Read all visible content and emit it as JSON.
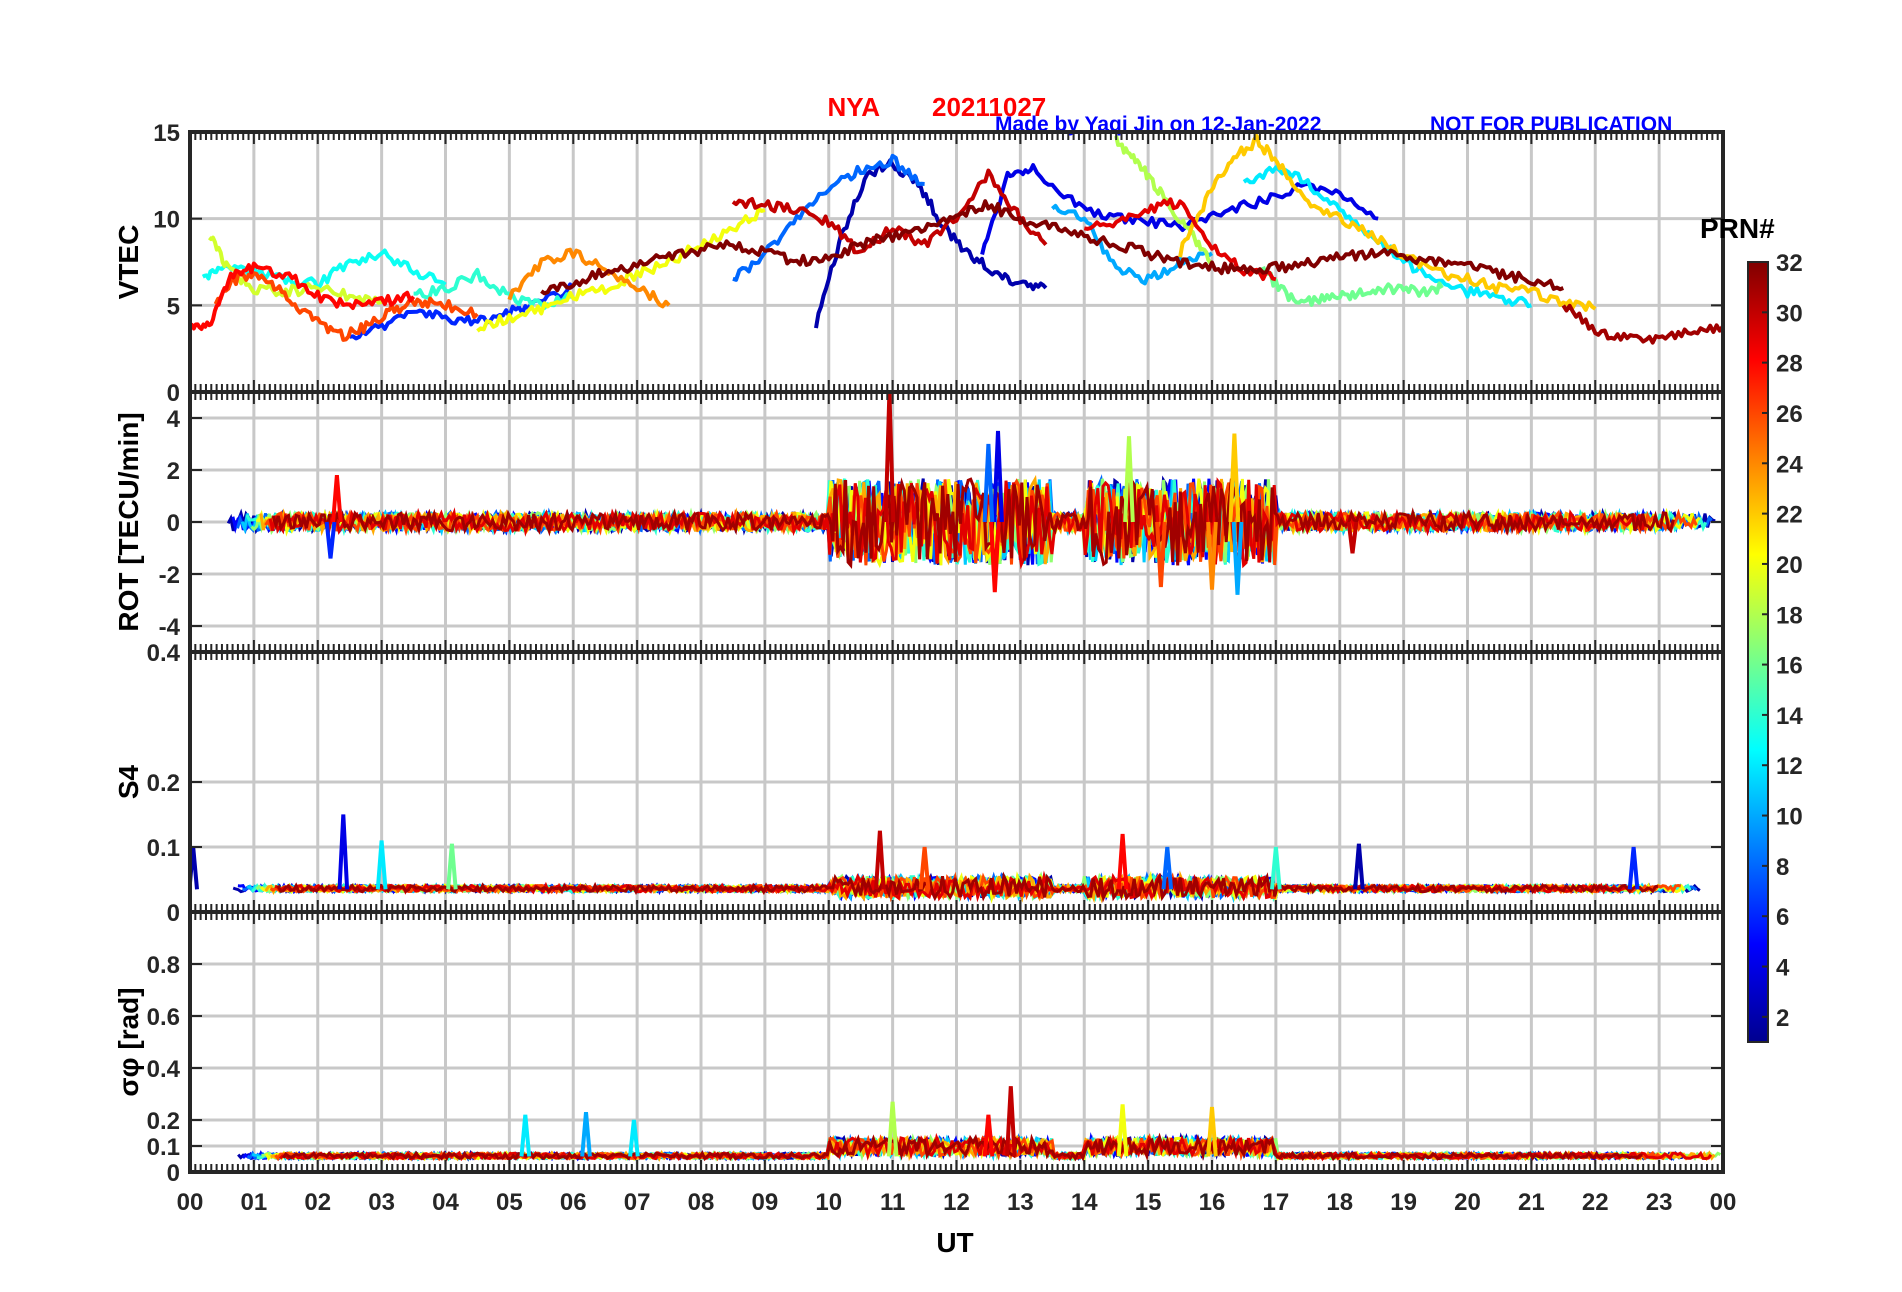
{
  "figure": {
    "station": "NYA",
    "date": "20211027",
    "credit": "Made by Yaqi Jin on 12-Jan-2022",
    "notice": "NOT FOR PUBLICATION",
    "xlabel": "UT",
    "x_ticks": [
      "00",
      "01",
      "02",
      "03",
      "04",
      "05",
      "06",
      "07",
      "08",
      "09",
      "10",
      "11",
      "12",
      "13",
      "14",
      "15",
      "16",
      "17",
      "18",
      "19",
      "20",
      "21",
      "22",
      "23",
      "00"
    ]
  },
  "colorbar": {
    "title": "PRN#",
    "range": [
      1,
      32
    ],
    "ticks": [
      2,
      4,
      6,
      8,
      10,
      12,
      14,
      16,
      18,
      20,
      22,
      24,
      26,
      28,
      30,
      32
    ],
    "colormap": "jet",
    "stops": [
      "#00008f",
      "#0000ff",
      "#0080ff",
      "#00ffff",
      "#80ff80",
      "#ffff00",
      "#ff8000",
      "#ff0000",
      "#800000"
    ]
  },
  "chart_data": [
    {
      "type": "line",
      "panel": "vtec",
      "ylabel": "VTEC",
      "xlim": [
        0,
        24
      ],
      "ylim": [
        0,
        15
      ],
      "yticks": [
        0,
        5,
        10,
        15
      ],
      "series": [
        {
          "name": "PRN 2",
          "prn": 2,
          "x": [
            9.8,
            10.2,
            10.6,
            11.0,
            11.4,
            11.8,
            12.2,
            12.6,
            13.0,
            13.4
          ],
          "y": [
            3.8,
            9.0,
            12.5,
            13.2,
            12.0,
            9.5,
            8.0,
            6.8,
            6.2,
            6.0
          ]
        },
        {
          "name": "PRN 4",
          "prn": 4,
          "x": [
            12.4,
            12.8,
            13.2,
            13.8,
            14.4,
            15.0,
            15.6,
            16.2,
            16.8,
            17.4,
            18.0,
            18.6
          ],
          "y": [
            8.0,
            12.5,
            13.0,
            11.0,
            10.0,
            9.8,
            9.5,
            10.5,
            11.0,
            12.0,
            11.5,
            10.0
          ]
        },
        {
          "name": "PRN 6",
          "prn": 6,
          "x": [
            2.5,
            3.0,
            3.5,
            4.0,
            4.5,
            5.0,
            5.5,
            6.0
          ],
          "y": [
            3.2,
            3.8,
            4.5,
            4.3,
            4.0,
            4.6,
            5.2,
            6.0
          ]
        },
        {
          "name": "PRN 8",
          "prn": 8,
          "x": [
            8.5,
            9.0,
            9.5,
            10.0,
            10.5,
            11.0,
            11.5
          ],
          "y": [
            6.5,
            8.0,
            10.0,
            11.8,
            12.8,
            13.4,
            12.0
          ]
        },
        {
          "name": "PRN 10",
          "prn": 10,
          "x": [
            13.5,
            14.0,
            14.5,
            15.0,
            15.5,
            16.0
          ],
          "y": [
            10.5,
            10.0,
            7.0,
            6.5,
            7.5,
            8.0
          ]
        },
        {
          "name": "PRN 12",
          "prn": 12,
          "x": [
            16.5,
            17.0,
            17.5,
            18.0,
            18.5,
            19.0,
            19.5,
            20.0,
            20.5,
            21.0
          ],
          "y": [
            12.0,
            13.0,
            12.0,
            10.5,
            9.0,
            7.5,
            6.5,
            5.8,
            5.5,
            5.0
          ]
        },
        {
          "name": "PRN 13",
          "prn": 13,
          "x": [
            0.2,
            0.5,
            1.0,
            1.5,
            2.0,
            2.5,
            3.0,
            3.5,
            4.0
          ],
          "y": [
            6.5,
            7.2,
            7.0,
            6.5,
            6.2,
            7.5,
            8.0,
            7.0,
            6.2
          ]
        },
        {
          "name": "PRN 14",
          "prn": 14,
          "x": [
            3.5,
            4.0,
            4.5,
            5.0,
            5.5,
            6.0
          ],
          "y": [
            5.5,
            6.0,
            6.8,
            5.5,
            5.0,
            5.5
          ]
        },
        {
          "name": "PRN 16",
          "prn": 16,
          "x": [
            16.8,
            17.2,
            17.6,
            18.0,
            18.4,
            18.8,
            19.2,
            19.6
          ],
          "y": [
            7.0,
            5.5,
            5.2,
            5.5,
            5.8,
            6.0,
            5.8,
            6.0
          ]
        },
        {
          "name": "PRN 18",
          "prn": 18,
          "x": [
            14.5,
            14.8,
            15.1,
            15.4,
            15.7,
            16.0
          ],
          "y": [
            14.5,
            13.5,
            12.0,
            10.5,
            9.0,
            7.5
          ]
        },
        {
          "name": "PRN 19",
          "prn": 19,
          "x": [
            0.3,
            0.6,
            1.0,
            1.5,
            2.0,
            2.5,
            3.0
          ],
          "y": [
            9.2,
            7.0,
            6.0,
            5.8,
            6.0,
            5.5,
            5.2
          ]
        },
        {
          "name": "PRN 20",
          "prn": 20,
          "x": [
            4.5,
            5.0,
            5.5,
            6.0,
            6.5,
            7.0,
            7.5,
            8.0,
            8.5,
            9.0
          ],
          "y": [
            3.8,
            4.2,
            4.8,
            5.5,
            6.0,
            6.8,
            7.5,
            8.5,
            9.5,
            10.5
          ]
        },
        {
          "name": "PRN 22",
          "prn": 22,
          "x": [
            15.5,
            15.9,
            16.3,
            16.7,
            17.1,
            17.5,
            18.0,
            18.5,
            19.0,
            19.5,
            20.0,
            20.5,
            21.0,
            21.5,
            22.0
          ],
          "y": [
            8.0,
            11.0,
            13.5,
            14.5,
            13.0,
            11.0,
            10.0,
            9.0,
            8.0,
            7.0,
            6.5,
            6.0,
            5.8,
            5.2,
            4.8
          ]
        },
        {
          "name": "PRN 24",
          "prn": 24,
          "x": [
            5.0,
            5.5,
            6.0,
            6.5,
            7.0,
            7.5
          ],
          "y": [
            5.5,
            7.5,
            8.0,
            7.0,
            6.0,
            5.0
          ]
        },
        {
          "name": "PRN 26",
          "prn": 26,
          "x": [
            0.4,
            0.8,
            1.2,
            1.6,
            2.0,
            2.4,
            2.8,
            3.2,
            3.6,
            4.0,
            4.5
          ],
          "y": [
            5.2,
            6.8,
            6.5,
            5.2,
            4.0,
            3.2,
            3.8,
            4.8,
            5.2,
            5.0,
            4.5
          ]
        },
        {
          "name": "PRN 28",
          "prn": 28,
          "x": [
            0.0,
            0.3,
            0.6,
            1.0,
            1.5,
            2.0,
            2.5,
            3.0,
            3.5
          ],
          "y": [
            4.0,
            3.8,
            6.5,
            7.2,
            6.8,
            5.5,
            5.0,
            5.2,
            5.5
          ]
        },
        {
          "name": "PRN 29",
          "prn": 29,
          "x": [
            14.0,
            14.5,
            15.0,
            15.5,
            16.0,
            16.5,
            17.0
          ],
          "y": [
            9.5,
            9.8,
            10.5,
            11.0,
            8.5,
            7.0,
            6.5
          ]
        },
        {
          "name": "PRN 30",
          "prn": 30,
          "x": [
            8.5,
            9.0,
            9.5,
            10.0,
            10.5,
            11.0,
            11.5,
            12.0,
            12.5,
            13.0,
            13.4
          ],
          "y": [
            11.0,
            10.8,
            10.5,
            9.8,
            8.0,
            9.5,
            8.5,
            10.0,
            12.5,
            10.0,
            8.5
          ]
        },
        {
          "name": "PRN 31",
          "prn": 31,
          "x": [
            21.5,
            22.0,
            22.5,
            23.0,
            23.5,
            24.0
          ],
          "y": [
            5.0,
            3.5,
            3.2,
            3.0,
            3.5,
            3.8
          ]
        },
        {
          "name": "PRN 32",
          "prn": 32,
          "x": [
            5.5,
            6.0,
            6.5,
            7.0,
            7.5,
            8.0,
            8.5,
            9.0,
            9.5,
            10.0,
            10.5,
            11.0,
            11.5,
            12.0,
            12.5,
            13.0,
            13.5,
            14.0,
            14.5,
            15.0,
            15.5,
            16.0,
            16.5,
            17.0,
            17.5,
            18.0,
            18.5,
            19.0,
            19.5,
            20.0,
            20.5,
            21.0,
            21.5
          ],
          "y": [
            5.8,
            6.3,
            6.9,
            7.3,
            7.8,
            8.2,
            8.6,
            8.0,
            7.5,
            7.8,
            8.5,
            9.0,
            9.5,
            10.2,
            10.8,
            10.0,
            9.5,
            9.0,
            8.5,
            8.0,
            7.5,
            7.2,
            7.0,
            7.2,
            7.4,
            7.8,
            8.0,
            7.8,
            7.5,
            7.2,
            6.8,
            6.5,
            6.0
          ]
        }
      ]
    },
    {
      "type": "line",
      "panel": "rot",
      "ylabel": "ROT [TECU/min]",
      "xlim": [
        0,
        24
      ],
      "ylim": [
        -5,
        5
      ],
      "yticks": [
        -4,
        -2,
        0,
        2,
        4
      ],
      "baseline": 0,
      "spikes": [
        {
          "prn": 30,
          "x": 10.95,
          "y": 5.0
        },
        {
          "prn": 4,
          "x": 12.65,
          "y": 3.5
        },
        {
          "prn": 8,
          "x": 12.5,
          "y": 3.0
        },
        {
          "prn": 22,
          "x": 16.35,
          "y": 3.4
        },
        {
          "prn": 18,
          "x": 14.7,
          "y": 3.3
        },
        {
          "prn": 28,
          "x": 12.6,
          "y": -2.7
        },
        {
          "prn": 10,
          "x": 16.4,
          "y": -2.8
        },
        {
          "prn": 24,
          "x": 16.0,
          "y": -2.6
        },
        {
          "prn": 26,
          "x": 15.2,
          "y": -2.5
        },
        {
          "prn": 6,
          "x": 2.2,
          "y": -1.4
        },
        {
          "prn": 28,
          "x": 2.3,
          "y": 1.8
        },
        {
          "prn": 30,
          "x": 18.2,
          "y": -1.2
        }
      ]
    },
    {
      "type": "line",
      "panel": "s4",
      "ylabel": "S4",
      "xlim": [
        0,
        24
      ],
      "ylim": [
        0,
        0.4
      ],
      "yticks": [
        0,
        0.1,
        0.2,
        0.4
      ],
      "baseline": 0.035,
      "spikes": [
        {
          "prn": 4,
          "x": 2.4,
          "y": 0.15
        },
        {
          "prn": 12,
          "x": 3.0,
          "y": 0.11
        },
        {
          "prn": 16,
          "x": 4.1,
          "y": 0.105
        },
        {
          "prn": 30,
          "x": 10.8,
          "y": 0.125
        },
        {
          "prn": 28,
          "x": 14.6,
          "y": 0.12
        },
        {
          "prn": 26,
          "x": 11.5,
          "y": 0.1
        },
        {
          "prn": 2,
          "x": 18.3,
          "y": 0.105
        },
        {
          "prn": 6,
          "x": 22.6,
          "y": 0.1
        },
        {
          "prn": 2,
          "x": 0.05,
          "y": 0.1
        },
        {
          "prn": 8,
          "x": 15.3,
          "y": 0.1
        },
        {
          "prn": 14,
          "x": 17.0,
          "y": 0.1
        }
      ]
    },
    {
      "type": "line",
      "panel": "sigma_phi",
      "ylabel": "σφ [rad]",
      "xlim": [
        0,
        24
      ],
      "ylim": [
        0,
        1
      ],
      "yticks": [
        0,
        0.1,
        0.2,
        0.4,
        0.6,
        0.8
      ],
      "baseline": 0.06,
      "spikes": [
        {
          "prn": 30,
          "x": 12.85,
          "y": 0.33
        },
        {
          "prn": 18,
          "x": 11.0,
          "y": 0.27
        },
        {
          "prn": 10,
          "x": 6.2,
          "y": 0.23
        },
        {
          "prn": 12,
          "x": 5.25,
          "y": 0.22
        },
        {
          "prn": 12,
          "x": 6.95,
          "y": 0.2
        },
        {
          "prn": 20,
          "x": 14.6,
          "y": 0.26
        },
        {
          "prn": 22,
          "x": 16.0,
          "y": 0.25
        },
        {
          "prn": 28,
          "x": 12.5,
          "y": 0.22
        }
      ]
    }
  ]
}
